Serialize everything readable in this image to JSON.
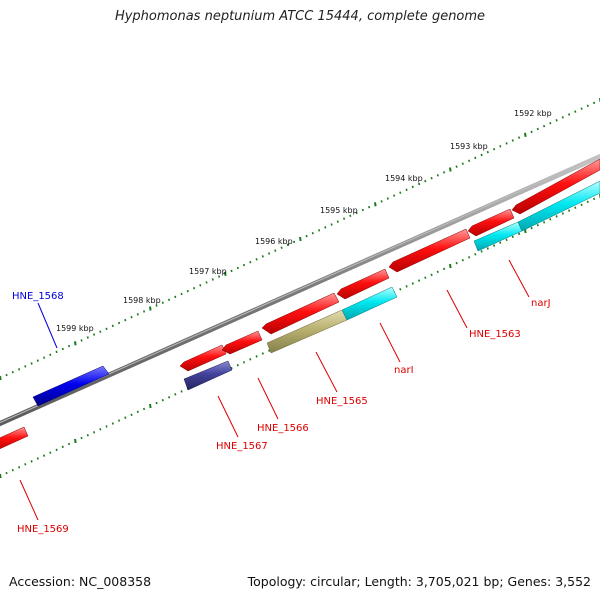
{
  "title": "Hyphomonas neptunium ATCC 15444, complete genome",
  "footer": {
    "accession": "Accession: NC_008358",
    "summary": "Topology: circular; Length: 3,705,021 bp; Genes: 3,552"
  },
  "scale": {
    "ticks": [
      {
        "label": "1592 kbp"
      },
      {
        "label": "1593 kbp"
      },
      {
        "label": "1594 kbp"
      },
      {
        "label": "1595 kbp"
      },
      {
        "label": "1596 kbp"
      },
      {
        "label": "1597 kbp"
      },
      {
        "label": "1598 kbp"
      },
      {
        "label": "1599 kbp"
      }
    ]
  },
  "genes": [
    {
      "label": "HNE_1568",
      "color": "#0000dd"
    },
    {
      "label": "HNE_1569",
      "color": "#dd0000"
    },
    {
      "label": "HNE_1567",
      "color": "#dd0000"
    },
    {
      "label": "HNE_1566",
      "color": "#dd0000"
    },
    {
      "label": "HNE_1565",
      "color": "#dd0000"
    },
    {
      "label": "narI",
      "color": "#dd0000"
    },
    {
      "label": "HNE_1563",
      "color": "#dd0000"
    },
    {
      "label": "narJ",
      "color": "#dd0000"
    }
  ],
  "colors": {
    "backbone": "#7a7a7a",
    "forward_gene": "#ff0000",
    "reverse_gene": "#0000ee",
    "feature_cyan": "#00e5ee",
    "feature_olive": "#b8b070",
    "feature_navy": "#3f3f99",
    "tick_marks": "#1a7a1a"
  }
}
